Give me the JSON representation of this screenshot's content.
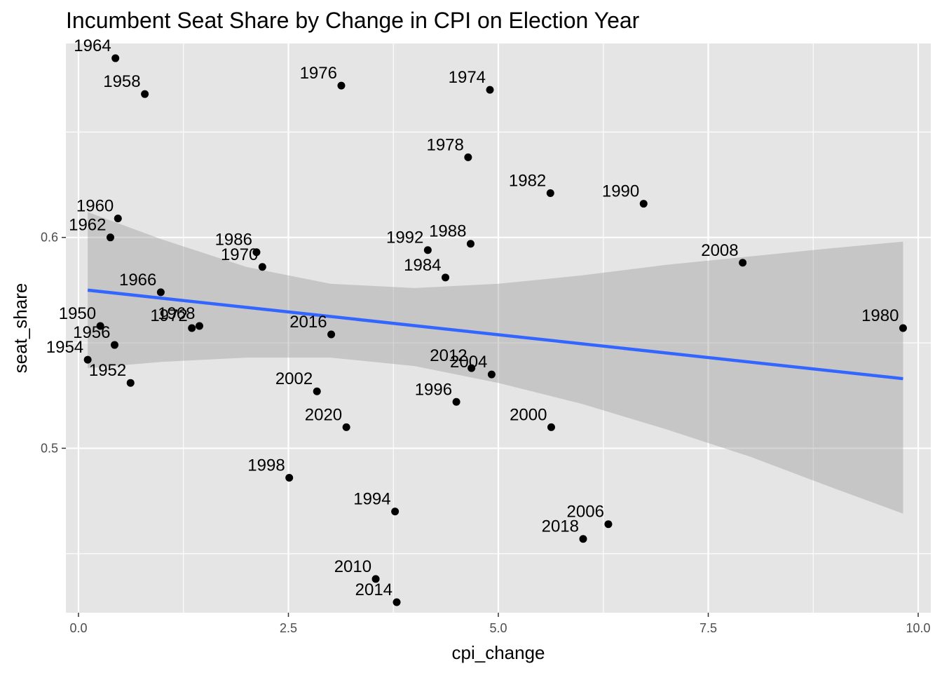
{
  "chart_data": {
    "type": "scatter",
    "title": "Incumbent Seat Share by Change in CPI on Election Year",
    "xlabel": "cpi_change",
    "ylabel": "seat_share",
    "xlim": [
      -0.15,
      10.15
    ],
    "ylim": [
      0.422,
      0.692
    ],
    "x_ticks": [
      0.0,
      2.5,
      5.0,
      7.5,
      10.0
    ],
    "x_tick_labels": [
      "0.0",
      "2.5",
      "5.0",
      "7.5",
      "10.0"
    ],
    "y_ticks": [
      0.5,
      0.6
    ],
    "y_tick_labels": [
      "0.5",
      "0.6"
    ],
    "grid": true,
    "background": "#e5e5e5",
    "point_color": "#000000",
    "trend_color": "#3366ff",
    "ribbon_color": "#999999",
    "points": [
      {
        "label": "1950",
        "x": 0.26,
        "y": 0.558
      },
      {
        "label": "1952",
        "x": 0.62,
        "y": 0.531
      },
      {
        "label": "1954",
        "x": 0.11,
        "y": 0.542
      },
      {
        "label": "1956",
        "x": 0.43,
        "y": 0.549
      },
      {
        "label": "1958",
        "x": 0.79,
        "y": 0.668
      },
      {
        "label": "1960",
        "x": 0.47,
        "y": 0.609
      },
      {
        "label": "1962",
        "x": 0.38,
        "y": 0.6
      },
      {
        "label": "1964",
        "x": 0.44,
        "y": 0.685
      },
      {
        "label": "1966",
        "x": 0.98,
        "y": 0.574
      },
      {
        "label": "1968",
        "x": 1.44,
        "y": 0.558
      },
      {
        "label": "1970",
        "x": 2.19,
        "y": 0.586
      },
      {
        "label": "1972",
        "x": 1.35,
        "y": 0.557
      },
      {
        "label": "1974",
        "x": 4.9,
        "y": 0.67
      },
      {
        "label": "1976",
        "x": 3.13,
        "y": 0.672
      },
      {
        "label": "1978",
        "x": 4.64,
        "y": 0.638
      },
      {
        "label": "1980",
        "x": 9.82,
        "y": 0.557
      },
      {
        "label": "1982",
        "x": 5.62,
        "y": 0.621
      },
      {
        "label": "1984",
        "x": 4.37,
        "y": 0.581
      },
      {
        "label": "1986",
        "x": 2.12,
        "y": 0.593
      },
      {
        "label": "1988",
        "x": 4.67,
        "y": 0.597
      },
      {
        "label": "1990",
        "x": 6.73,
        "y": 0.616
      },
      {
        "label": "1992",
        "x": 4.16,
        "y": 0.594
      },
      {
        "label": "1994",
        "x": 3.77,
        "y": 0.47
      },
      {
        "label": "1996",
        "x": 4.5,
        "y": 0.522
      },
      {
        "label": "1998",
        "x": 2.51,
        "y": 0.486
      },
      {
        "label": "2000",
        "x": 5.63,
        "y": 0.51
      },
      {
        "label": "2002",
        "x": 2.84,
        "y": 0.527
      },
      {
        "label": "2004",
        "x": 4.92,
        "y": 0.535
      },
      {
        "label": "2006",
        "x": 6.31,
        "y": 0.464
      },
      {
        "label": "2008",
        "x": 7.91,
        "y": 0.588
      },
      {
        "label": "2010",
        "x": 3.54,
        "y": 0.438
      },
      {
        "label": "2012",
        "x": 4.68,
        "y": 0.538
      },
      {
        "label": "2014",
        "x": 3.79,
        "y": 0.427
      },
      {
        "label": "2016",
        "x": 3.01,
        "y": 0.554
      },
      {
        "label": "2018",
        "x": 6.01,
        "y": 0.457
      },
      {
        "label": "2020",
        "x": 3.19,
        "y": 0.51
      }
    ],
    "trend_line": {
      "x": [
        0.11,
        9.82
      ],
      "y": [
        0.575,
        0.533
      ]
    },
    "confidence_band": {
      "x": [
        0.11,
        1.0,
        2.0,
        3.0,
        4.0,
        5.0,
        6.0,
        7.0,
        8.0,
        9.0,
        9.82
      ],
      "upper": [
        0.612,
        0.599,
        0.586,
        0.578,
        0.576,
        0.578,
        0.582,
        0.587,
        0.591,
        0.595,
        0.598
      ],
      "lower": [
        0.538,
        0.541,
        0.543,
        0.543,
        0.539,
        0.531,
        0.521,
        0.509,
        0.496,
        0.481,
        0.469
      ]
    }
  }
}
